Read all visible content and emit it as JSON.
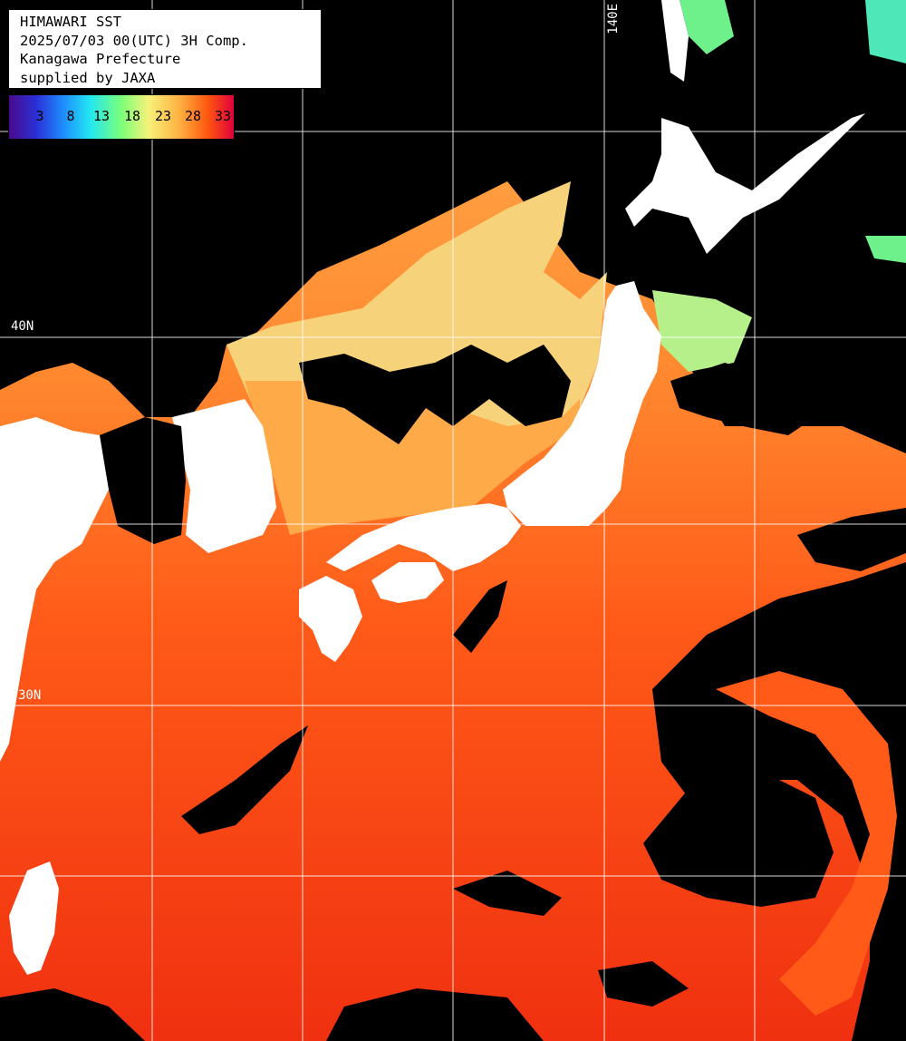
{
  "title_box": {
    "line1": "HIMAWARI SST",
    "line2": "2025/07/03 00(UTC) 3H Comp.",
    "line3": "Kanagawa Prefecture",
    "line4": "supplied by JAXA"
  },
  "colorbar": {
    "ticks": [
      "3",
      "8",
      "13",
      "18",
      "23",
      "28",
      "33"
    ],
    "colors": [
      "#4a0a8c",
      "#2b2fd6",
      "#1e8cff",
      "#22e6f0",
      "#7cff7a",
      "#f6f27a",
      "#ffb040",
      "#ff5a10",
      "#e0003a"
    ]
  },
  "grid_labels": {
    "lon_140": "140E",
    "lat_40": "40N",
    "lat_30": "30N"
  },
  "palette": {
    "cloud": "#000000",
    "land": "#ffffff",
    "sea_warm": "#ff4a14",
    "sea_mid": "#ff8a30",
    "sea_cool": "#f3d676",
    "sea_cold": "#7cf08a",
    "gridline": "#ffffff"
  }
}
